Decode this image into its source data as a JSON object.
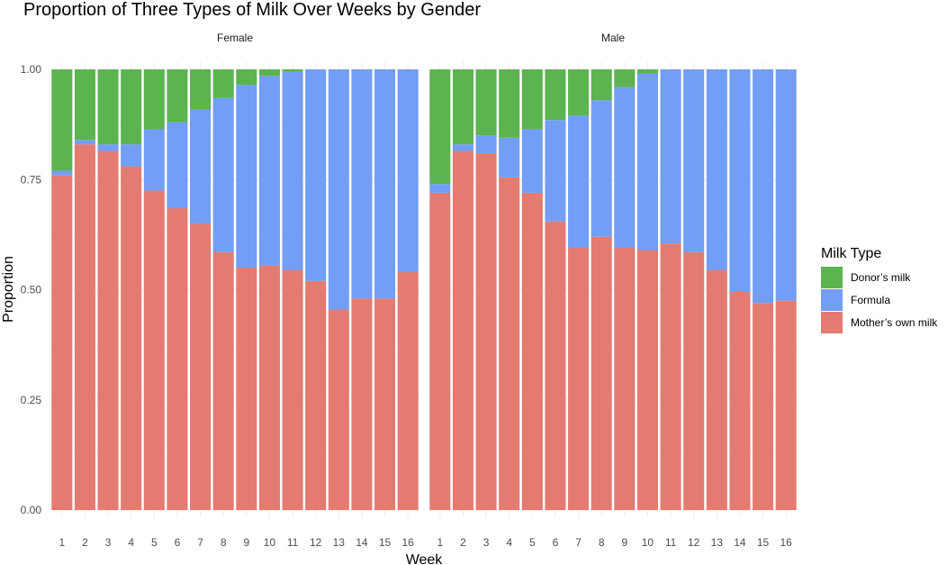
{
  "chart_data": {
    "type": "bar",
    "stacked": true,
    "title": "Proportion of Three Types of Milk Over Weeks by Gender",
    "xlabel": "Week",
    "ylabel": "Proportion",
    "ylim": [
      0,
      1
    ],
    "yticks": [
      "0.00",
      "0.25",
      "0.50",
      "0.75",
      "1.00"
    ],
    "ytick_values": [
      0,
      0.25,
      0.5,
      0.75,
      1.0
    ],
    "categories": [
      "1",
      "2",
      "3",
      "4",
      "5",
      "6",
      "7",
      "8",
      "9",
      "10",
      "11",
      "12",
      "13",
      "14",
      "15",
      "16"
    ],
    "legend": {
      "title": "Milk Type",
      "position": "right",
      "items": [
        {
          "name": "Donor’s milk",
          "color": "#5bb450"
        },
        {
          "name": "Formula",
          "color": "#729ef5"
        },
        {
          "name": "Mother’s own milk",
          "color": "#e37b71"
        }
      ]
    },
    "panels": [
      {
        "name": "Female",
        "series": [
          {
            "name": "Mother’s own milk",
            "values": [
              0.76,
              0.83,
              0.815,
              0.78,
              0.725,
              0.685,
              0.65,
              0.585,
              0.55,
              0.555,
              0.545,
              0.52,
              0.455,
              0.48,
              0.48,
              0.54
            ]
          },
          {
            "name": "Formula",
            "values": [
              0.01,
              0.01,
              0.015,
              0.05,
              0.14,
              0.195,
              0.26,
              0.35,
              0.415,
              0.43,
              0.45,
              0.48,
              0.545,
              0.52,
              0.52,
              0.46
            ]
          },
          {
            "name": "Donor’s milk",
            "values": [
              0.23,
              0.16,
              0.17,
              0.17,
              0.135,
              0.12,
              0.09,
              0.065,
              0.035,
              0.015,
              0.005,
              0,
              0,
              0,
              0,
              0
            ]
          }
        ]
      },
      {
        "name": "Male",
        "series": [
          {
            "name": "Mother’s own milk",
            "values": [
              0.72,
              0.815,
              0.81,
              0.755,
              0.72,
              0.655,
              0.595,
              0.62,
              0.595,
              0.59,
              0.605,
              0.585,
              0.545,
              0.495,
              0.47,
              0.475
            ]
          },
          {
            "name": "Formula",
            "values": [
              0.02,
              0.015,
              0.04,
              0.09,
              0.145,
              0.23,
              0.3,
              0.31,
              0.365,
              0.4,
              0.395,
              0.415,
              0.455,
              0.505,
              0.53,
              0.525
            ]
          },
          {
            "name": "Donor’s milk",
            "values": [
              0.26,
              0.17,
              0.15,
              0.155,
              0.135,
              0.115,
              0.105,
              0.07,
              0.04,
              0.01,
              0,
              0,
              0,
              0,
              0,
              0
            ]
          }
        ]
      }
    ]
  }
}
